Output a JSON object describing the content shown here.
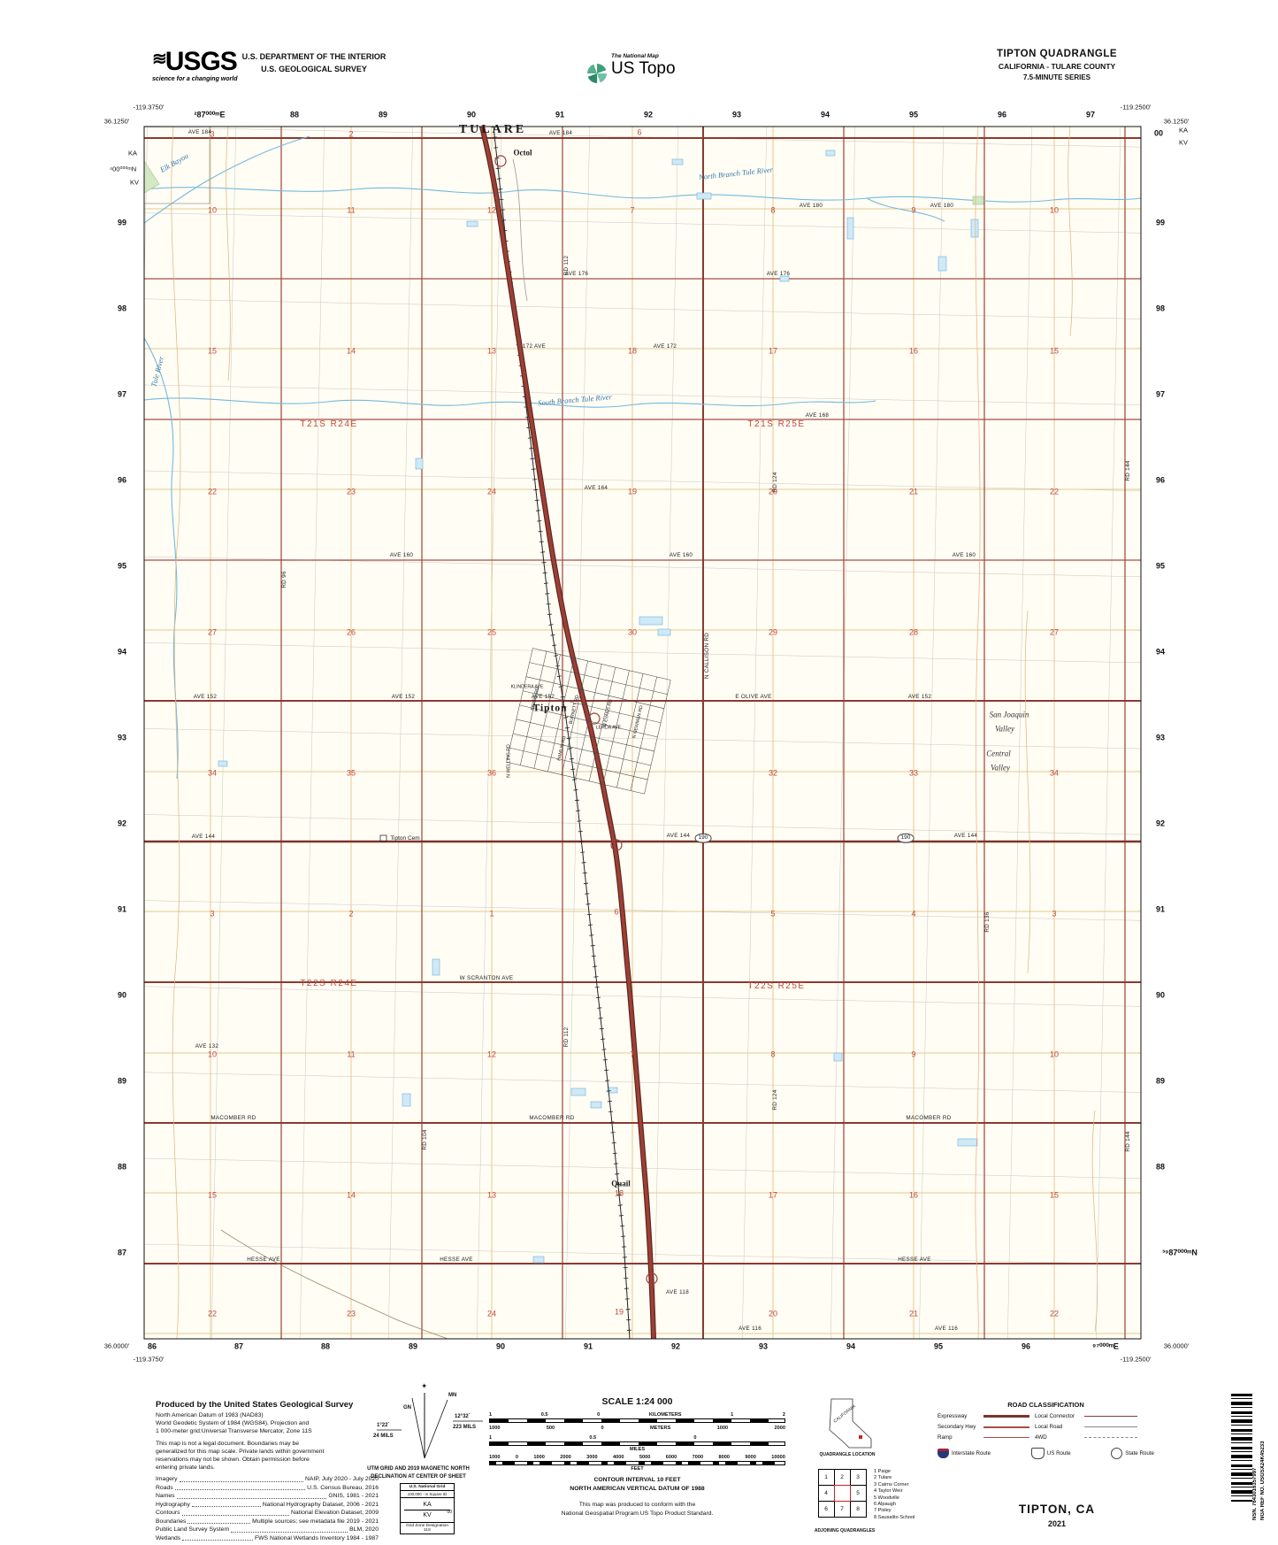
{
  "header": {
    "usgs_logo": "USGS",
    "usgs_tagline": "science for a changing world",
    "dept_line1": "U.S. DEPARTMENT OF THE INTERIOR",
    "dept_line2": "U.S. GEOLOGICAL SURVEY",
    "natmap_label": "The National Map",
    "ustopo_label": "US Topo",
    "title": "TIPTON QUADRANGLE",
    "subtitle": "CALIFORNIA - TULARE COUNTY",
    "series": "7.5-MINUTE SERIES"
  },
  "map": {
    "labels": [
      [
        "²87⁰⁰⁰ᵐE",
        237,
        130,
        "g"
      ],
      [
        "88",
        333,
        130,
        "g"
      ],
      [
        "89",
        433,
        130,
        "g"
      ],
      [
        "90",
        533,
        130,
        "g"
      ],
      [
        "91",
        633,
        130,
        "g"
      ],
      [
        "92",
        733,
        130,
        "g"
      ],
      [
        "93",
        833,
        130,
        "g"
      ],
      [
        "94",
        933,
        130,
        "g"
      ],
      [
        "95",
        1033,
        130,
        "g"
      ],
      [
        "96",
        1133,
        130,
        "g"
      ],
      [
        "97",
        1233,
        130,
        "g"
      ],
      [
        "86",
        172,
        1522,
        "g"
      ],
      [
        "87",
        270,
        1522,
        "g"
      ],
      [
        "88",
        368,
        1522,
        "g"
      ],
      [
        "89",
        467,
        1522,
        "g"
      ],
      [
        "90",
        566,
        1522,
        "g"
      ],
      [
        "91",
        665,
        1522,
        "g"
      ],
      [
        "92",
        764,
        1522,
        "g"
      ],
      [
        "93",
        863,
        1522,
        "g"
      ],
      [
        "94",
        962,
        1522,
        "g"
      ],
      [
        "95",
        1061,
        1522,
        "g"
      ],
      [
        "96",
        1160,
        1522,
        "g"
      ],
      [
        "⁹⁷⁰⁰⁰ᵐE",
        1250,
        1522,
        "g"
      ],
      [
        "99",
        138,
        252,
        "g"
      ],
      [
        "98",
        138,
        349,
        "g"
      ],
      [
        "97",
        138,
        446,
        "g"
      ],
      [
        "96",
        138,
        543,
        "g"
      ],
      [
        "95",
        138,
        640,
        "g"
      ],
      [
        "94",
        138,
        737,
        "g"
      ],
      [
        "93",
        138,
        834,
        "g"
      ],
      [
        "92",
        138,
        931,
        "g"
      ],
      [
        "91",
        138,
        1028,
        "g"
      ],
      [
        "90",
        138,
        1125,
        "g"
      ],
      [
        "89",
        138,
        1222,
        "g"
      ],
      [
        "88",
        138,
        1319,
        "g"
      ],
      [
        "87",
        138,
        1416,
        "g"
      ],
      [
        "00",
        1310,
        151,
        "g"
      ],
      [
        "99",
        1312,
        252,
        "g"
      ],
      [
        "98",
        1312,
        349,
        "g"
      ],
      [
        "97",
        1312,
        446,
        "g"
      ],
      [
        "96",
        1312,
        543,
        "g"
      ],
      [
        "95",
        1312,
        640,
        "g"
      ],
      [
        "94",
        1312,
        737,
        "g"
      ],
      [
        "93",
        1312,
        834,
        "g"
      ],
      [
        "92",
        1312,
        931,
        "g"
      ],
      [
        "91",
        1312,
        1028,
        "g"
      ],
      [
        "90",
        1312,
        1125,
        "g"
      ],
      [
        "89",
        1312,
        1222,
        "g"
      ],
      [
        "88",
        1312,
        1319,
        "g"
      ],
      [
        "³⁹87⁰⁰⁰ᵐN",
        1334,
        1416,
        "g"
      ],
      [
        "-119.3750'",
        168,
        121,
        "co"
      ],
      [
        "36.1250'",
        132,
        137,
        "co"
      ],
      [
        "-119.2500'",
        1284,
        121,
        "co"
      ],
      [
        "36.1250'",
        1330,
        137,
        "co"
      ],
      [
        "36.0000'",
        132,
        1521,
        "co"
      ],
      [
        "-119.3750'",
        168,
        1536,
        "co"
      ],
      [
        "36.0000'",
        1330,
        1521,
        "co"
      ],
      [
        "-119.2500'",
        1284,
        1536,
        "co"
      ],
      [
        "KA",
        150,
        173,
        "co"
      ],
      [
        "⁴00⁰⁰⁰ᵐN",
        139,
        191,
        "co"
      ],
      [
        "KV",
        152,
        206,
        "co"
      ],
      [
        "KA",
        1338,
        147,
        "co"
      ],
      [
        "KV",
        1338,
        161,
        "co"
      ],
      [
        "3",
        240,
        152,
        "s"
      ],
      [
        "2",
        397,
        152,
        "s"
      ],
      [
        "6",
        723,
        150,
        "s"
      ],
      [
        "10",
        240,
        238,
        "s"
      ],
      [
        "11",
        397,
        238,
        "s"
      ],
      [
        "12",
        556,
        238,
        "s"
      ],
      [
        "7",
        715,
        238,
        "s"
      ],
      [
        "8",
        874,
        238,
        "s"
      ],
      [
        "9",
        1033,
        238,
        "s"
      ],
      [
        "10",
        1192,
        238,
        "s"
      ],
      [
        "15",
        240,
        397,
        "s"
      ],
      [
        "14",
        397,
        397,
        "s"
      ],
      [
        "13",
        556,
        397,
        "s"
      ],
      [
        "18",
        715,
        397,
        "s"
      ],
      [
        "17",
        874,
        397,
        "s"
      ],
      [
        "16",
        1033,
        397,
        "s"
      ],
      [
        "15",
        1192,
        397,
        "s"
      ],
      [
        "22",
        240,
        556,
        "s"
      ],
      [
        "23",
        397,
        556,
        "s"
      ],
      [
        "24",
        556,
        556,
        "s"
      ],
      [
        "19",
        715,
        556,
        "s"
      ],
      [
        "20",
        874,
        556,
        "s"
      ],
      [
        "21",
        1033,
        556,
        "s"
      ],
      [
        "22",
        1192,
        556,
        "s"
      ],
      [
        "27",
        240,
        715,
        "s"
      ],
      [
        "26",
        397,
        715,
        "s"
      ],
      [
        "25",
        556,
        715,
        "s"
      ],
      [
        "30",
        715,
        715,
        "s"
      ],
      [
        "29",
        874,
        715,
        "s"
      ],
      [
        "28",
        1033,
        715,
        "s"
      ],
      [
        "27",
        1192,
        715,
        "s"
      ],
      [
        "34",
        240,
        874,
        "s"
      ],
      [
        "35",
        397,
        874,
        "s"
      ],
      [
        "36",
        556,
        874,
        "s"
      ],
      [
        "32",
        874,
        874,
        "s"
      ],
      [
        "33",
        1033,
        874,
        "s"
      ],
      [
        "34",
        1192,
        874,
        "s"
      ],
      [
        "3",
        240,
        1033,
        "s"
      ],
      [
        "2",
        397,
        1033,
        "s"
      ],
      [
        "1",
        556,
        1033,
        "s"
      ],
      [
        "6",
        697,
        1031,
        "s"
      ],
      [
        "5",
        874,
        1033,
        "s"
      ],
      [
        "4",
        1033,
        1033,
        "s"
      ],
      [
        "3",
        1192,
        1033,
        "s"
      ],
      [
        "10",
        240,
        1192,
        "s"
      ],
      [
        "11",
        397,
        1192,
        "s"
      ],
      [
        "12",
        556,
        1192,
        "s"
      ],
      [
        "7",
        715,
        1192,
        "s"
      ],
      [
        "8",
        874,
        1192,
        "s"
      ],
      [
        "9",
        1033,
        1192,
        "s"
      ],
      [
        "10",
        1192,
        1192,
        "s"
      ],
      [
        "15",
        240,
        1351,
        "s"
      ],
      [
        "14",
        397,
        1351,
        "s"
      ],
      [
        "13",
        556,
        1351,
        "s"
      ],
      [
        "18",
        700,
        1349,
        "s"
      ],
      [
        "17",
        874,
        1351,
        "s"
      ],
      [
        "16",
        1033,
        1351,
        "s"
      ],
      [
        "15",
        1192,
        1351,
        "s"
      ],
      [
        "22",
        240,
        1485,
        "s"
      ],
      [
        "23",
        397,
        1485,
        "s"
      ],
      [
        "24",
        556,
        1485,
        "s"
      ],
      [
        "19",
        700,
        1483,
        "s"
      ],
      [
        "20",
        874,
        1485,
        "s"
      ],
      [
        "21",
        1033,
        1485,
        "s"
      ],
      [
        "22",
        1192,
        1485,
        "s"
      ],
      [
        "T21S R24E",
        372,
        480,
        "tw"
      ],
      [
        "T21S R25E",
        878,
        480,
        "tw"
      ],
      [
        "T22S R24E",
        372,
        1112,
        "tw"
      ],
      [
        "T22S R25E",
        878,
        1115,
        "tw"
      ],
      [
        "TULARE",
        557,
        147,
        "ci"
      ],
      [
        "Octol",
        591,
        173,
        "pl"
      ],
      [
        "Tipton",
        622,
        801,
        "to"
      ],
      [
        "Quail",
        702,
        1338,
        "pl"
      ],
      [
        "Tipton Cem",
        458,
        948,
        "ce"
      ],
      [
        "North Branch Tule River",
        832,
        196,
        "w",
        -6
      ],
      [
        "South Branch Tule River",
        650,
        452,
        "w",
        -5
      ],
      [
        "Tule River",
        178,
        420,
        "w",
        -75
      ],
      [
        "Elk Bayou",
        197,
        184,
        "w",
        -30
      ],
      [
        "San Joaquin",
        1141,
        808,
        "va"
      ],
      [
        "Valley",
        1136,
        824,
        "va"
      ],
      [
        "Central",
        1129,
        852,
        "va"
      ],
      [
        "Valley",
        1131,
        868,
        "va"
      ],
      [
        "AVE 184",
        226,
        150,
        "r"
      ],
      [
        "AVE 184",
        634,
        151,
        "r"
      ],
      [
        "AVE 180",
        917,
        233,
        "r"
      ],
      [
        "AVE 180",
        1065,
        233,
        "r"
      ],
      [
        "AVE 176",
        652,
        310,
        "r"
      ],
      [
        "AVE 176",
        880,
        310,
        "r"
      ],
      [
        "172 AVE",
        604,
        392,
        "r"
      ],
      [
        "AVE 172",
        752,
        392,
        "r"
      ],
      [
        "AVE 168",
        924,
        470,
        "r"
      ],
      [
        "AVE 164",
        674,
        552,
        "r"
      ],
      [
        "AVE 160",
        454,
        628,
        "r"
      ],
      [
        "AVE 160",
        770,
        628,
        "r"
      ],
      [
        "AVE 160",
        1090,
        628,
        "r"
      ],
      [
        "AVE 152",
        232,
        788,
        "r"
      ],
      [
        "AVE 152",
        456,
        788,
        "r"
      ],
      [
        "AVE 152",
        614,
        788,
        "r"
      ],
      [
        "AVE 152",
        1040,
        788,
        "r"
      ],
      [
        "E OLIVE AVE",
        852,
        788,
        "r"
      ],
      [
        "AVE 144",
        230,
        946,
        "r"
      ],
      [
        "AVE 144",
        767,
        945,
        "r"
      ],
      [
        "AVE 144",
        1092,
        945,
        "r"
      ],
      [
        "AVE 132",
        234,
        1183,
        "r"
      ],
      [
        "W SCRANTON AVE",
        550,
        1106,
        "r"
      ],
      [
        "MACOMBER RD",
        264,
        1264,
        "r"
      ],
      [
        "MACOMBER RD",
        624,
        1264,
        "r"
      ],
      [
        "MACOMBER RD",
        1050,
        1264,
        "r"
      ],
      [
        "HESSE AVE",
        298,
        1424,
        "r"
      ],
      [
        "HESSE AVE",
        516,
        1424,
        "r"
      ],
      [
        "HESSE AVE",
        1034,
        1424,
        "r"
      ],
      [
        "AVE 118",
        766,
        1461,
        "r"
      ],
      [
        "AVE 116",
        848,
        1502,
        "r"
      ],
      [
        "AVE 116",
        1070,
        1502,
        "r"
      ],
      [
        "RD 96",
        322,
        655,
        "r",
        -90
      ],
      [
        "RD 104",
        481,
        1288,
        "r",
        -90
      ],
      [
        "RD 112",
        641,
        300,
        "r",
        -90
      ],
      [
        "RD 112",
        641,
        1172,
        "r",
        -90
      ],
      [
        "N CALLISON RD",
        800,
        741,
        "r",
        -90
      ],
      [
        "RD 124",
        877,
        545,
        "r",
        -90
      ],
      [
        "RD 124",
        877,
        1243,
        "r",
        -90
      ],
      [
        "RD 136",
        1117,
        1042,
        "r",
        -90
      ],
      [
        "RD 144",
        1276,
        532,
        "r",
        -90
      ],
      [
        "RD 144",
        1276,
        1290,
        "r",
        -90
      ],
      [
        "BERRY RD",
        606,
        790,
        "t",
        -77
      ],
      [
        "BURNETT RD",
        650,
        802,
        "t",
        -77
      ],
      [
        "HAMLIN RD",
        636,
        846,
        "t",
        -77
      ],
      [
        "N EVANS RD",
        688,
        806,
        "t",
        -77
      ],
      [
        "N NEWMAN RD",
        722,
        816,
        "t",
        -77
      ],
      [
        "N WELLING RD",
        576,
        860,
        "t",
        -90
      ],
      [
        "KLINDERA AVE",
        596,
        777,
        "t"
      ],
      [
        "LERDA AVE",
        688,
        823,
        "t"
      ],
      [
        "190",
        795,
        947,
        "sh"
      ],
      [
        "190",
        1024,
        947,
        "sh"
      ]
    ]
  },
  "footer": {
    "produced_title": "Produced by the United States Geological Survey",
    "datum_lines": [
      "North American Datum of 1983 (NAD83)",
      "World Geodetic System of 1984 (WGS84).  Projection and",
      "1 000-meter grid:Universal Transverse Mercator, Zone 11S"
    ],
    "legal_lines": [
      "This map is not a legal document. Boundaries may be",
      "generalized for this map scale. Private lands within government",
      "reservations may not be shown. Obtain permission before",
      "entering private lands."
    ],
    "sources": [
      {
        "label": "Imagery",
        "value": "NAIP, July 2020 - July 2020"
      },
      {
        "label": "Roads",
        "value": "U.S. Census Bureau, 2016"
      },
      {
        "label": "Names",
        "value": "GNIS, 1981 - 2021"
      },
      {
        "label": "Hydrography",
        "value": "National Hydrography Dataset, 2006 - 2021"
      },
      {
        "label": "Contours",
        "value": "National Elevation Dataset, 2009"
      },
      {
        "label": "Boundaries",
        "value": "Multiple sources; see metadata file 2019 - 2021"
      },
      {
        "label": "Public Land Survey System",
        "value": "BLM, 2020"
      },
      {
        "label": "Wetlands",
        "value": "FWS National Wetlands Inventory 1984 - 1987"
      }
    ],
    "declination": {
      "gn_label": "GN",
      "mn_label": "MN",
      "gn_value": "1°22´",
      "gn_mils": "24 MILS",
      "mn_value": "12°32´",
      "mn_mils": "223 MILS",
      "caption1": "UTM GRID AND 2019 MAGNETIC NORTH",
      "caption2": "DECLINATION AT CENTER OF SHEET"
    },
    "usng": {
      "title": "U.S. National Grid",
      "sub": "100,000 - m Square ID",
      "sq1": "KA",
      "corner": "00",
      "sq2": "KV",
      "zone_label": "Grid Zone Designation",
      "zone": "11S"
    },
    "scale": {
      "title": "SCALE 1:24 000",
      "km_ticks": [
        "1",
        "0.5",
        "0",
        "KILOMETERS",
        "1",
        "2"
      ],
      "m_ticks": [
        "1000",
        "500",
        "0",
        "METERS",
        "1000",
        "2000"
      ],
      "mi_ticks": [
        "1",
        "0.5",
        "0"
      ],
      "miles_unit": "MILES",
      "ft_ticks": [
        "1000",
        "0",
        "1000",
        "2000",
        "3000",
        "4000",
        "5000",
        "6000",
        "7000",
        "8000",
        "9000",
        "10000"
      ],
      "feet_unit": "FEET",
      "contour": "CONTOUR INTERVAL 10 FEET",
      "vdatum": "NORTH AMERICAN VERTICAL DATUM OF 1988",
      "conform1": "This map was produced to conform with the",
      "conform2": "National Geospatial Program US Topo Product Standard."
    },
    "location": {
      "state": "CALIFORNIA",
      "caption": "QUADRANGLE LOCATION"
    },
    "adjoining": {
      "cells": [
        "1",
        "2",
        "3",
        "4",
        "",
        "5",
        "6",
        "7",
        "8"
      ],
      "names": [
        "1 Paige",
        "2 Tulare",
        "3 Cairns Corner",
        "4 Taylor Weir",
        "5 Woodville",
        "6 Alpaugh",
        "7 Pixley",
        "8 Sausalito School"
      ],
      "caption": "ADJOINING QUADRANGLES"
    },
    "road_class": {
      "title": "ROAD CLASSIFICATION",
      "items": [
        "Expressway",
        "Local Connector",
        "Secondary Hwy",
        "Local Road",
        "Ramp",
        "4WD"
      ],
      "shields": [
        "Interstate Route",
        "US Route",
        "State Route"
      ]
    },
    "sheet_title": "TIPTON,  CA",
    "sheet_year": "2021",
    "barcode_nsn": "NSN. 7643016357997",
    "barcode_ref": "NGA REF NO. USGSX24K45233"
  }
}
